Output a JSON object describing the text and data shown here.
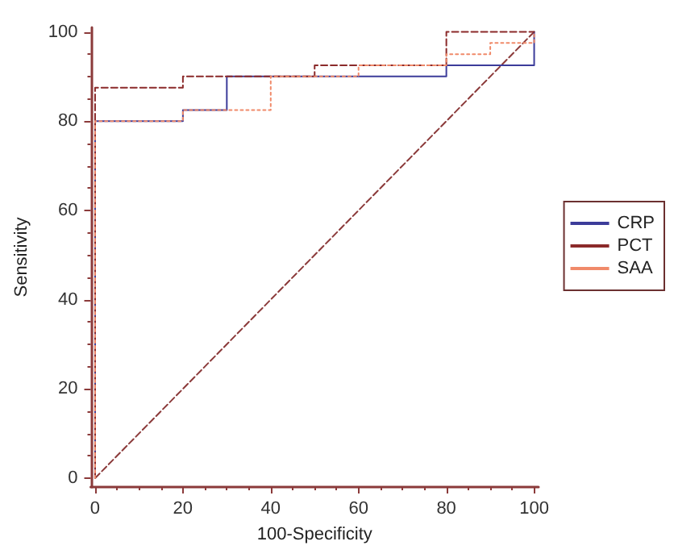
{
  "chart_data": {
    "type": "step",
    "xlabel": "100-Specificity",
    "ylabel": "Sensitivity",
    "xlim": [
      -1,
      101
    ],
    "ylim": [
      -2,
      101
    ],
    "xticks": [
      0,
      20,
      40,
      60,
      80,
      100
    ],
    "yticks": [
      0,
      20,
      40,
      60,
      80,
      100
    ],
    "grid": false,
    "legend": "right",
    "marker": "none",
    "series": [
      {
        "name": "CRP",
        "color": "#3c3c9a",
        "line_style": "solid",
        "x": [
          0,
          0,
          20,
          30,
          80,
          100
        ],
        "values": [
          0,
          80,
          82.5,
          90,
          92.5,
          100
        ]
      },
      {
        "name": "PCT",
        "color": "#8b2a2a",
        "line_style": "dashed",
        "x": [
          0,
          0,
          20,
          50,
          80,
          100
        ],
        "values": [
          0,
          87.5,
          90,
          92.5,
          100,
          100
        ]
      },
      {
        "name": "SAA",
        "color": "#f08a6a",
        "line_style": "dotted",
        "x": [
          0,
          0,
          20,
          40,
          60,
          80,
          90,
          100
        ],
        "values": [
          0,
          80,
          82.5,
          90,
          92.5,
          95,
          97.5,
          100
        ]
      },
      {
        "type": "line",
        "color": "#8b3a3a",
        "line_style": "dashed",
        "x": [
          0,
          100
        ],
        "values": [
          0,
          100
        ]
      }
    ]
  }
}
